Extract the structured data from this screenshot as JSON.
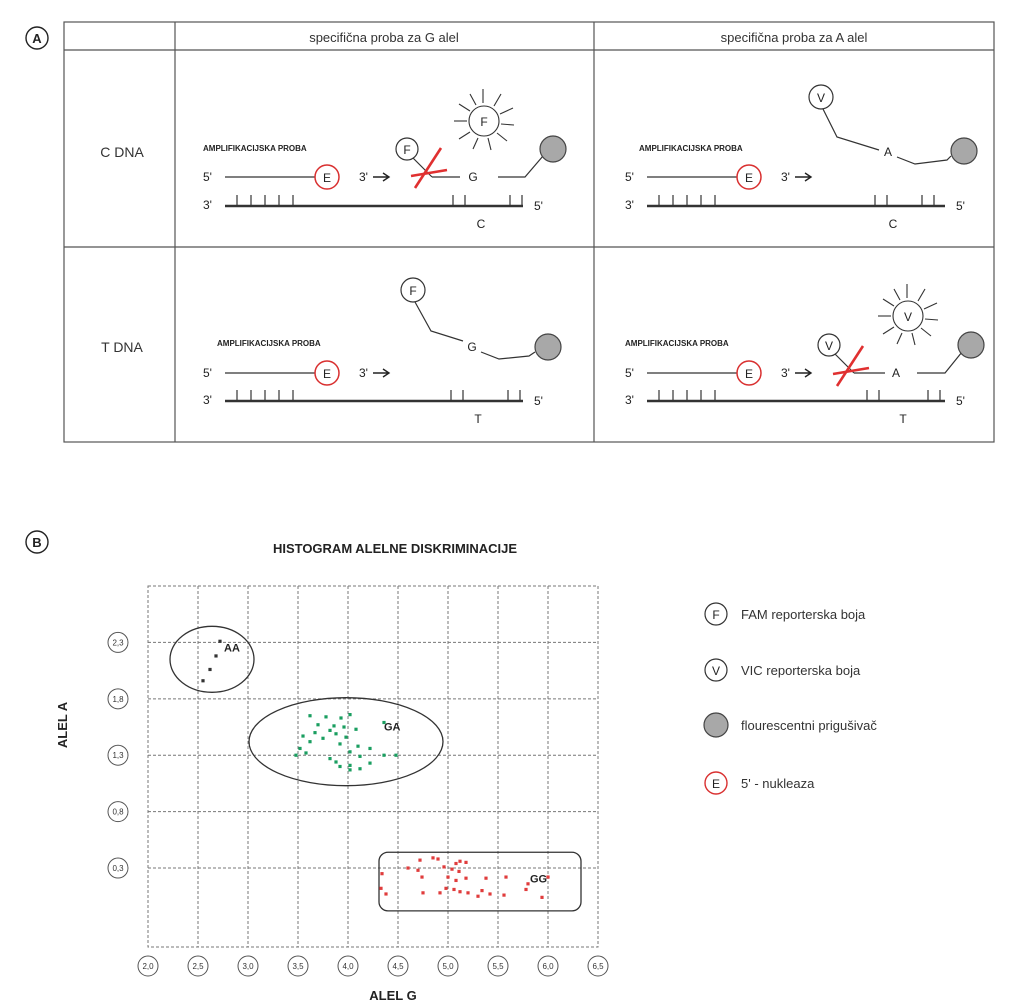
{
  "panelA": {
    "label": "A",
    "col_headers": [
      "specifična proba za G alel",
      "specifična proba za A alel"
    ],
    "rows": [
      {
        "label": "C DNA",
        "cells": [
          {
            "amp_label": "AMPLIFIKACIJSKA PROBA",
            "five": "5'",
            "three": "3'",
            "arrow_3": "3'",
            "nuclease": "E",
            "reporter": "F",
            "probe_base": "G",
            "template_base": "C",
            "template_5": "5'",
            "cleaved": true
          },
          {
            "amp_label": "AMPLIFIKACIJSKA PROBA",
            "five": "5'",
            "three": "3'",
            "arrow_3": "3'",
            "nuclease": "E",
            "reporter": "V",
            "probe_base": "A",
            "template_base": "C",
            "template_5": "5'",
            "cleaved": false
          }
        ]
      },
      {
        "label": "T DNA",
        "cells": [
          {
            "amp_label": "AMPLIFIKACIJSKA PROBA",
            "five": "5'",
            "three": "3'",
            "arrow_3": "3'",
            "nuclease": "E",
            "reporter": "F",
            "probe_base": "G",
            "template_base": "T",
            "template_5": "5'",
            "cleaved": false
          },
          {
            "amp_label": "AMPLIFIKACIJSKA PROBA",
            "five": "5'",
            "three": "3'",
            "arrow_3": "3'",
            "nuclease": "E",
            "reporter": "V",
            "probe_base": "A",
            "template_base": "T",
            "template_5": "5'",
            "cleaved": true
          }
        ]
      }
    ]
  },
  "panelB": {
    "label": "B",
    "chart_data": {
      "type": "scatter",
      "title": "HISTOGRAM ALELNE DISKRIMINACIJE",
      "xlabel": "ALEL G",
      "ylabel": "ALEL A",
      "xlim": [
        2.0,
        6.5
      ],
      "ylim": [
        -0.4,
        2.8
      ],
      "x_ticks": [
        "2,0",
        "2,5",
        "3,0",
        "3,5",
        "4,0",
        "4,5",
        "5,0",
        "5,5",
        "6,0",
        "6,5"
      ],
      "x_tick_values": [
        2.0,
        2.5,
        3.0,
        3.5,
        4.0,
        4.5,
        5.0,
        5.5,
        6.0,
        6.5
      ],
      "y_ticks": [
        "2,3",
        "1,8",
        "1,3",
        "0,8",
        "0,3"
      ],
      "y_tick_values": [
        2.3,
        1.8,
        1.3,
        0.8,
        0.3
      ],
      "grid": true,
      "series": [
        {
          "name": "AA",
          "color": "#333333",
          "points": [
            [
              2.72,
              2.31
            ],
            [
              2.68,
              2.18
            ],
            [
              2.62,
              2.06
            ],
            [
              2.55,
              1.96
            ]
          ]
        },
        {
          "name": "GA",
          "color": "#1a9e60",
          "points": [
            [
              3.62,
              1.65
            ],
            [
              3.78,
              1.64
            ],
            [
              3.93,
              1.63
            ],
            [
              4.02,
              1.66
            ],
            [
              4.36,
              1.59
            ],
            [
              3.7,
              1.57
            ],
            [
              3.86,
              1.56
            ],
            [
              3.96,
              1.55
            ],
            [
              3.67,
              1.5
            ],
            [
              3.82,
              1.52
            ],
            [
              3.88,
              1.49
            ],
            [
              3.98,
              1.46
            ],
            [
              4.08,
              1.53
            ],
            [
              3.55,
              1.47
            ],
            [
              3.75,
              1.45
            ],
            [
              3.62,
              1.42
            ],
            [
              3.92,
              1.4
            ],
            [
              4.1,
              1.38
            ],
            [
              3.52,
              1.36
            ],
            [
              4.22,
              1.36
            ],
            [
              3.58,
              1.32
            ],
            [
              4.02,
              1.33
            ],
            [
              3.48,
              1.3
            ],
            [
              3.82,
              1.27
            ],
            [
              4.12,
              1.29
            ],
            [
              3.88,
              1.24
            ],
            [
              4.02,
              1.21
            ],
            [
              4.36,
              1.3
            ],
            [
              4.48,
              1.3
            ],
            [
              4.22,
              1.23
            ],
            [
              3.92,
              1.2
            ],
            [
              4.12,
              1.18
            ],
            [
              4.02,
              1.17
            ]
          ]
        },
        {
          "name": "GG",
          "color": "#e03c3c",
          "points": [
            [
              4.72,
              0.37
            ],
            [
              4.85,
              0.39
            ],
            [
              4.9,
              0.38
            ],
            [
              5.08,
              0.34
            ],
            [
              5.12,
              0.36
            ],
            [
              5.18,
              0.35
            ],
            [
              4.6,
              0.3
            ],
            [
              4.7,
              0.28
            ],
            [
              4.96,
              0.31
            ],
            [
              5.04,
              0.29
            ],
            [
              5.11,
              0.27
            ],
            [
              4.34,
              0.25
            ],
            [
              4.33,
              0.12
            ],
            [
              4.74,
              0.22
            ],
            [
              5.0,
              0.22
            ],
            [
              5.08,
              0.19
            ],
            [
              5.18,
              0.21
            ],
            [
              5.38,
              0.21
            ],
            [
              5.58,
              0.22
            ],
            [
              6.0,
              0.22
            ],
            [
              5.8,
              0.16
            ],
            [
              4.98,
              0.12
            ],
            [
              5.06,
              0.11
            ],
            [
              5.12,
              0.09
            ],
            [
              4.75,
              0.08
            ],
            [
              4.92,
              0.08
            ],
            [
              5.2,
              0.08
            ],
            [
              5.34,
              0.1
            ],
            [
              5.42,
              0.07
            ],
            [
              5.56,
              0.06
            ],
            [
              5.3,
              0.05
            ],
            [
              4.38,
              0.07
            ],
            [
              5.94,
              0.04
            ],
            [
              5.78,
              0.11
            ]
          ]
        }
      ]
    },
    "cluster_labels": [
      "AA",
      "GA",
      "GG"
    ],
    "legend": [
      {
        "symbol": "F",
        "text": "FAM reporterska boja"
      },
      {
        "symbol": "V",
        "text": "VIC reporterska boja"
      },
      {
        "symbol": "",
        "text": "flourescentni prigušivač"
      },
      {
        "symbol": "E",
        "text": "5' - nukleaza"
      }
    ]
  }
}
